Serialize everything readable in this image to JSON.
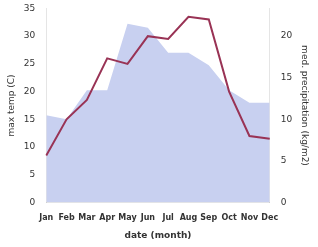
{
  "chart_data": {
    "type": "line",
    "xlabel": "date (month)",
    "ylabel": "max temp (C)",
    "y2label": "med. precipitation (kg/m2)",
    "categories": [
      "Jan",
      "Feb",
      "Mar",
      "Apr",
      "May",
      "Jun",
      "Jul",
      "Aug",
      "Sep",
      "Oct",
      "Nov",
      "Dec"
    ],
    "series": [
      {
        "type": "area",
        "axis": "y2",
        "color": "#c8d0f0",
        "values": [
          10.5,
          10.0,
          13.5,
          13.5,
          21.5,
          21.0,
          18.0,
          18.0,
          16.5,
          13.5,
          12.0,
          12.0
        ]
      },
      {
        "type": "line",
        "color": "#993355",
        "values": [
          8.5,
          15.0,
          18.5,
          26.0,
          25.0,
          30.0,
          29.5,
          33.5,
          33.0,
          20.0,
          12.0,
          11.5
        ]
      }
    ],
    "ylim": [
      0,
      35
    ],
    "yticks": [
      0,
      5,
      10,
      15,
      20,
      25,
      30,
      35
    ],
    "y2lim": [
      0,
      23.33
    ],
    "y2ticks": [
      0,
      5,
      10,
      15,
      20
    ],
    "grid": false
  }
}
